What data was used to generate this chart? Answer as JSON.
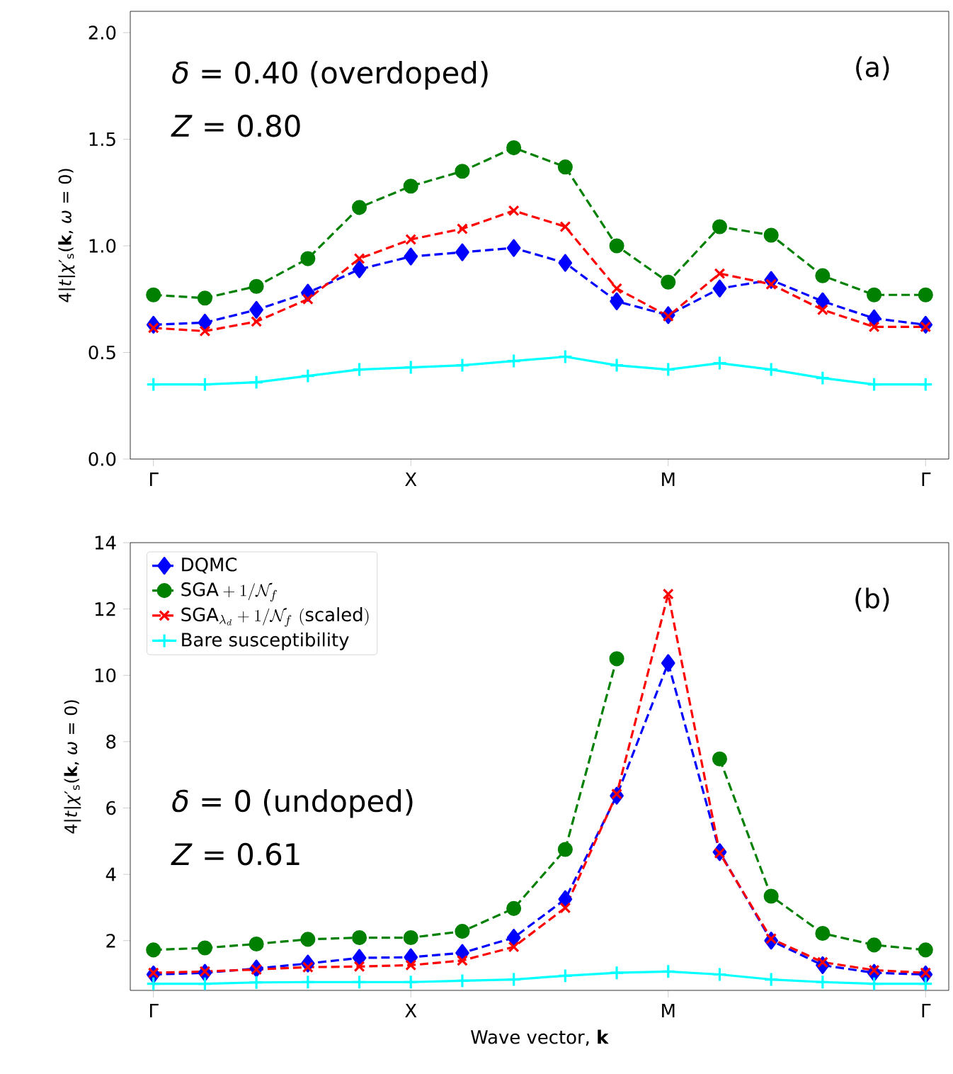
{
  "chart_data": [
    {
      "type": "line",
      "ylabel": "4|*t*|*χ*′$_{s}$(**k**, *ω* = 0)",
      "categories": [
        "Γ",
        null,
        null,
        null,
        null,
        "X",
        null,
        null,
        null,
        null,
        "M",
        null,
        null,
        null,
        null,
        "Γ"
      ],
      "ylim": [
        0,
        2.1
      ],
      "yticks": [
        {
          "value": 0,
          "label": "0.0"
        },
        {
          "value": 0.5,
          "label": "0.5"
        },
        {
          "value": 1,
          "label": "1.0"
        },
        {
          "value": 1.5,
          "label": "1.5"
        },
        {
          "value": 2,
          "label": "2.0"
        }
      ],
      "annotations": [
        "(a)",
        "*δ* = 0.40 (overdoped)",
        "*Z* = 0.80"
      ],
      "grid": false,
      "legend": false,
      "series": [
        {
          "color": "#0000ff",
          "marker": "diamond",
          "line_style": "dashed",
          "values": [
            0.63,
            0.64,
            0.7,
            0.78,
            0.89,
            0.95,
            0.97,
            0.99,
            0.92,
            0.74,
            0.675,
            0.8,
            0.84,
            0.74,
            0.66,
            0.63
          ]
        },
        {
          "color": "#008000",
          "marker": "circle",
          "line_style": "dashed",
          "values": [
            0.77,
            0.755,
            0.81,
            0.94,
            1.18,
            1.28,
            1.35,
            1.46,
            1.37,
            1.0,
            0.83,
            1.09,
            1.05,
            0.86,
            0.77,
            0.77
          ]
        },
        {
          "color": "#ff0000",
          "marker": "cross",
          "line_style": "dashed",
          "values": [
            0.615,
            0.6,
            0.645,
            0.75,
            0.94,
            1.03,
            1.08,
            1.165,
            1.09,
            0.8,
            0.67,
            0.87,
            0.82,
            0.7,
            0.62,
            0.62
          ]
        },
        {
          "color": "#00ffff",
          "marker": "plus",
          "line_style": "solid",
          "values": [
            0.35,
            0.35,
            0.36,
            0.39,
            0.42,
            0.43,
            0.44,
            0.46,
            0.48,
            0.44,
            0.42,
            0.45,
            0.42,
            0.38,
            0.35,
            0.35
          ]
        }
      ]
    },
    {
      "type": "line",
      "ylabel": "4|*t*|*χ*′$_{s}$(**k**, *ω* = 0)",
      "xlabel": "Wave vector, **k**",
      "categories": [
        "Γ",
        null,
        null,
        null,
        null,
        "X",
        null,
        null,
        null,
        null,
        "M",
        null,
        null,
        null,
        null,
        "Γ"
      ],
      "ylim": [
        0.5,
        14
      ],
      "yticks": [
        2,
        4,
        6,
        8,
        10,
        12,
        14
      ],
      "annotations": [
        "(b)",
        "*δ* = 0 (undoped)",
        "*Z* = 0.61"
      ],
      "grid": false,
      "legend": "top left",
      "series": [
        {
          "name": "DQMC",
          "color": "#0000ff",
          "marker": "diamond",
          "line_style": "dashed",
          "values": [
            0.98,
            1.03,
            1.16,
            1.31,
            1.48,
            1.5,
            1.63,
            2.09,
            3.25,
            6.37,
            10.37,
            4.67,
            2.0,
            1.26,
            1.03,
            0.98
          ]
        },
        {
          "name": "\\mathrm{SGA}+1/\\mathcal{N}_f",
          "color": "#008000",
          "marker": "circle",
          "line_style": "dashed",
          "values": [
            1.72,
            1.78,
            1.9,
            2.04,
            2.09,
            2.09,
            2.28,
            2.97,
            4.75,
            10.5,
            null,
            7.48,
            3.34,
            2.22,
            1.87,
            1.72
          ]
        },
        {
          "name": "\\mathrm{SGA}_{\\lambda_d}+1/\\mathcal{N}_f\\ \\mathrm{(scaled)}",
          "color": "#ff0000",
          "marker": "cross",
          "line_style": "dashed",
          "values": [
            1.03,
            1.07,
            1.13,
            1.2,
            1.22,
            1.26,
            1.4,
            1.81,
            2.99,
            6.42,
            12.45,
            4.64,
            2.06,
            1.35,
            1.11,
            1.03
          ]
        },
        {
          "name": "Bare susceptibility",
          "color": "#00ffff",
          "marker": "plus",
          "line_style": "solid",
          "values": [
            0.7,
            0.7,
            0.74,
            0.75,
            0.75,
            0.75,
            0.79,
            0.83,
            0.94,
            1.03,
            1.07,
            0.98,
            0.83,
            0.75,
            0.7,
            0.7
          ]
        }
      ]
    }
  ]
}
